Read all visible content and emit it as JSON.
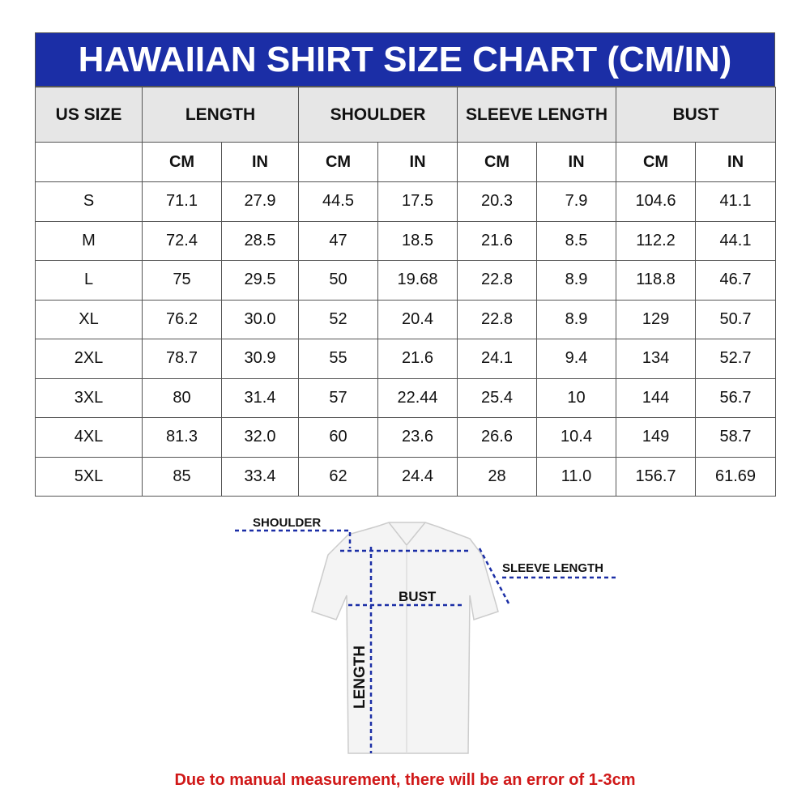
{
  "title": "HAWAIIAN SHIRT SIZE CHART (CM/IN)",
  "colors": {
    "title_bg": "#1b2ea6",
    "header_bg": "#e6e6e6",
    "note": "#d01818",
    "measure_line": "#1b2ea6"
  },
  "table": {
    "group_headers": [
      "US SIZE",
      "LENGTH",
      "SHOULDER",
      "SLEEVE LENGTH",
      "BUST"
    ],
    "unit_headers": [
      "CM",
      "IN",
      "CM",
      "IN",
      "CM",
      "IN",
      "CM",
      "IN"
    ],
    "rows": [
      [
        "S",
        "71.1",
        "27.9",
        "44.5",
        "17.5",
        "20.3",
        "7.9",
        "104.6",
        "41.1"
      ],
      [
        "M",
        "72.4",
        "28.5",
        "47",
        "18.5",
        "21.6",
        "8.5",
        "112.2",
        "44.1"
      ],
      [
        "L",
        "75",
        "29.5",
        "50",
        "19.68",
        "22.8",
        "8.9",
        "118.8",
        "46.7"
      ],
      [
        "XL",
        "76.2",
        "30.0",
        "52",
        "20.4",
        "22.8",
        "8.9",
        "129",
        "50.7"
      ],
      [
        "2XL",
        "78.7",
        "30.9",
        "55",
        "21.6",
        "24.1",
        "9.4",
        "134",
        "52.7"
      ],
      [
        "3XL",
        "80",
        "31.4",
        "57",
        "22.44",
        "25.4",
        "10",
        "144",
        "56.7"
      ],
      [
        "4XL",
        "81.3",
        "32.0",
        "60",
        "23.6",
        "26.6",
        "10.4",
        "149",
        "58.7"
      ],
      [
        "5XL",
        "85",
        "33.4",
        "62",
        "24.4",
        "28",
        "11.0",
        "156.7",
        "61.69"
      ]
    ]
  },
  "diagram": {
    "shoulder": "SHOULDER",
    "sleeve": "SLEEVE LENGTH",
    "bust": "BUST",
    "length": "LENGTH"
  },
  "note": "Due to manual measurement, there will be an error of 1-3cm"
}
